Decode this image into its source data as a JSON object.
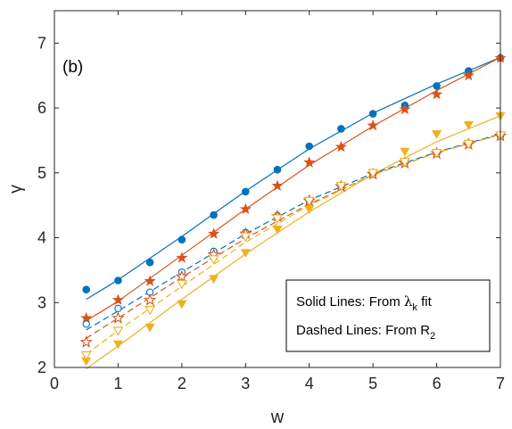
{
  "chart_data": {
    "type": "scatter",
    "panel_label": "(b)",
    "xlabel": "w",
    "ylabel": "γ",
    "xlim": [
      0,
      7
    ],
    "ylim": [
      2,
      7.5
    ],
    "x_ticks": [
      "0",
      "1",
      "2",
      "3",
      "4",
      "5",
      "6",
      "7"
    ],
    "y_ticks": [
      "2",
      "3",
      "4",
      "5",
      "6",
      "7"
    ],
    "grid": false,
    "colors": {
      "blue": "#0072BD",
      "orange": "#D95319",
      "yellow": "#EDB120",
      "axis": "#262626"
    },
    "annotation": {
      "line1_prefix": "Solid Lines: From ",
      "line1_symbol": "λ",
      "line1_sub": "k",
      "line1_suffix": " fit",
      "line2_prefix": "Dashed Lines: From R",
      "line2_sub": "2"
    },
    "series": [
      {
        "color": "blue",
        "marker": "filled-circle",
        "x": [
          0.5,
          1,
          1.5,
          2,
          2.5,
          3,
          3.5,
          4,
          4.5,
          5,
          5.5,
          6,
          6.5,
          7
        ],
        "y": [
          3.2,
          3.34,
          3.62,
          3.97,
          4.35,
          4.71,
          5.05,
          5.41,
          5.68,
          5.91,
          6.04,
          6.34,
          6.57,
          6.77
        ]
      },
      {
        "color": "orange",
        "marker": "filled-star",
        "x": [
          0.5,
          1,
          1.5,
          2,
          2.5,
          3,
          3.5,
          4,
          4.5,
          5,
          5.5,
          6,
          6.5,
          7
        ],
        "y": [
          2.76,
          3.04,
          3.33,
          3.69,
          4.06,
          4.44,
          4.8,
          5.16,
          5.4,
          5.73,
          5.98,
          6.21,
          6.5,
          6.77
        ]
      },
      {
        "color": "yellow",
        "marker": "filled-triangle-down",
        "x": [
          0.5,
          1,
          1.5,
          2,
          2.5,
          3,
          3.5,
          4,
          4.5,
          5,
          5.5,
          6,
          6.5,
          7
        ],
        "y": [
          2.1,
          2.36,
          2.62,
          2.98,
          3.37,
          3.77,
          4.13,
          4.44,
          4.79,
          5.0,
          5.33,
          5.6,
          5.74,
          5.88
        ]
      },
      {
        "color": "blue",
        "marker": "open-circle",
        "x": [
          0.5,
          1,
          1.5,
          2,
          2.5,
          3,
          3.5,
          4,
          4.5,
          5,
          5.5,
          6,
          6.5,
          7
        ],
        "y": [
          2.67,
          2.91,
          3.16,
          3.47,
          3.79,
          4.08,
          4.34,
          4.57,
          4.8,
          4.98,
          5.16,
          5.3,
          5.45,
          5.57
        ]
      },
      {
        "color": "orange",
        "marker": "open-star",
        "x": [
          0.5,
          1,
          1.5,
          2,
          2.5,
          3,
          3.5,
          4,
          4.5,
          5,
          5.5,
          6,
          6.5,
          7
        ],
        "y": [
          2.39,
          2.76,
          3.04,
          3.4,
          3.74,
          4.06,
          4.33,
          4.57,
          4.79,
          4.98,
          5.15,
          5.3,
          5.44,
          5.57
        ]
      },
      {
        "color": "yellow",
        "marker": "open-triangle-down",
        "x": [
          0.5,
          1,
          1.5,
          2,
          2.5,
          3,
          3.5,
          4,
          4.5,
          5,
          5.5,
          6,
          6.5,
          7
        ],
        "y": [
          2.19,
          2.57,
          2.89,
          3.29,
          3.67,
          4.02,
          4.3,
          4.57,
          4.8,
          5.0,
          5.17,
          5.31,
          5.45,
          5.58
        ]
      }
    ],
    "lines": [
      {
        "color": "blue",
        "style": "solid",
        "x": [
          0.5,
          1,
          2,
          3,
          4,
          5,
          6,
          7
        ],
        "y": [
          3.05,
          3.35,
          4.02,
          4.72,
          5.37,
          5.92,
          6.37,
          6.78
        ]
      },
      {
        "color": "orange",
        "style": "solid",
        "x": [
          0.5,
          1,
          2,
          3,
          4,
          5,
          6,
          7
        ],
        "y": [
          2.72,
          3.02,
          3.73,
          4.44,
          5.12,
          5.72,
          6.27,
          6.78
        ]
      },
      {
        "color": "yellow",
        "style": "solid",
        "x": [
          0.5,
          1,
          2,
          3,
          4,
          5,
          6,
          7
        ],
        "y": [
          1.98,
          2.33,
          3.05,
          3.75,
          4.4,
          4.98,
          5.48,
          5.88
        ]
      },
      {
        "color": "blue",
        "style": "dashed",
        "x": [
          0.5,
          1,
          2,
          3,
          4,
          5,
          6,
          7
        ],
        "y": [
          2.58,
          2.87,
          3.47,
          4.06,
          4.58,
          4.99,
          5.32,
          5.6
        ]
      },
      {
        "color": "orange",
        "style": "dashed",
        "x": [
          0.5,
          1,
          2,
          3,
          4,
          5,
          6,
          7
        ],
        "y": [
          2.45,
          2.76,
          3.39,
          3.99,
          4.52,
          4.97,
          5.31,
          5.59
        ]
      },
      {
        "color": "yellow",
        "style": "dashed",
        "x": [
          0.5,
          1,
          2,
          3,
          4,
          5,
          6,
          7
        ],
        "y": [
          2.2,
          2.57,
          3.25,
          3.93,
          4.5,
          4.97,
          5.31,
          5.59
        ]
      }
    ]
  }
}
